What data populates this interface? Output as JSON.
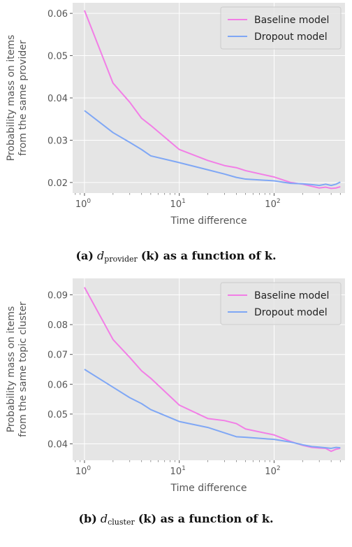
{
  "chart_data": [
    {
      "type": "line",
      "xlabel": "Time difference",
      "ylabel_lines": [
        "Probability mass on items",
        "from the same provider"
      ],
      "xscale": "log",
      "xlim": [
        0.75,
        560
      ],
      "ylim": [
        0.0175,
        0.0625
      ],
      "yticks": [
        0.02,
        0.03,
        0.04,
        0.05,
        0.06
      ],
      "ytick_labels": [
        "0.02",
        "0.03",
        "0.04",
        "0.05",
        "0.06"
      ],
      "xtick_bases": [
        "10",
        "10",
        "10"
      ],
      "xtick_exps": [
        "0",
        "1",
        "2"
      ],
      "grid": true,
      "legend_position": "top-right",
      "series": [
        {
          "name": "Baseline model",
          "color": "#f27ee6",
          "x": [
            1,
            2,
            3,
            4,
            5,
            10,
            20,
            30,
            40,
            50,
            100,
            150,
            200,
            250,
            300,
            350,
            400,
            450,
            500
          ],
          "y": [
            0.0607,
            0.0435,
            0.039,
            0.0352,
            0.0335,
            0.0278,
            0.0252,
            0.024,
            0.0235,
            0.0228,
            0.0213,
            0.02,
            0.0196,
            0.0191,
            0.0187,
            0.0189,
            0.0186,
            0.0187,
            0.019
          ]
        },
        {
          "name": "Dropout model",
          "color": "#7fa7f5",
          "x": [
            1,
            2,
            3,
            4,
            5,
            10,
            20,
            30,
            40,
            50,
            100,
            150,
            200,
            250,
            300,
            350,
            400,
            450,
            500
          ],
          "y": [
            0.037,
            0.0318,
            0.0295,
            0.0278,
            0.0263,
            0.0247,
            0.023,
            0.022,
            0.0212,
            0.0208,
            0.0204,
            0.0198,
            0.0197,
            0.0195,
            0.0193,
            0.0196,
            0.0193,
            0.0196,
            0.0201
          ]
        }
      ]
    },
    {
      "type": "line",
      "xlabel": "Time difference",
      "ylabel_lines": [
        "Probability mass on items",
        "from the same topic cluster"
      ],
      "xscale": "log",
      "xlim": [
        0.75,
        560
      ],
      "ylim": [
        0.0345,
        0.0955
      ],
      "yticks": [
        0.04,
        0.05,
        0.06,
        0.07,
        0.08,
        0.09
      ],
      "ytick_labels": [
        "0.04",
        "0.05",
        "0.06",
        "0.07",
        "0.08",
        "0.09"
      ],
      "xtick_bases": [
        "10",
        "10",
        "10"
      ],
      "xtick_exps": [
        "0",
        "1",
        "2"
      ],
      "grid": true,
      "legend_position": "top-right",
      "series": [
        {
          "name": "Baseline model",
          "color": "#f27ee6",
          "x": [
            1,
            2,
            3,
            4,
            5,
            10,
            20,
            30,
            40,
            50,
            100,
            150,
            200,
            250,
            300,
            350,
            400,
            450,
            500
          ],
          "y": [
            0.0925,
            0.075,
            0.069,
            0.0645,
            0.062,
            0.053,
            0.0485,
            0.0478,
            0.0468,
            0.045,
            0.043,
            0.0408,
            0.0395,
            0.0388,
            0.0386,
            0.0385,
            0.0375,
            0.0382,
            0.0385
          ]
        },
        {
          "name": "Dropout model",
          "color": "#7fa7f5",
          "x": [
            1,
            2,
            3,
            4,
            5,
            10,
            20,
            30,
            40,
            50,
            100,
            150,
            200,
            250,
            300,
            350,
            400,
            450,
            500
          ],
          "y": [
            0.065,
            0.059,
            0.0555,
            0.0535,
            0.0515,
            0.0475,
            0.0455,
            0.0437,
            0.0424,
            0.0422,
            0.0415,
            0.0406,
            0.0397,
            0.0391,
            0.0389,
            0.0387,
            0.0385,
            0.0388,
            0.0387
          ]
        }
      ]
    }
  ],
  "captions": [
    {
      "label": "(a)",
      "var": "d",
      "sub": "provider",
      "text": "(k) as a function of k."
    },
    {
      "label": "(b)",
      "var": "d",
      "sub": "cluster",
      "text": "(k) as a function of k."
    }
  ]
}
